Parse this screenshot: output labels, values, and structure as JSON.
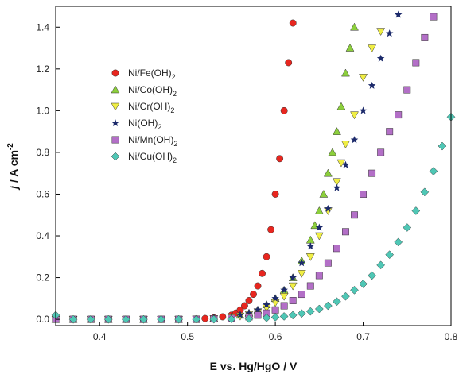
{
  "chart_data": {
    "type": "scatter",
    "title": "",
    "xlabel": "E vs. Hg/HgO / V",
    "ylabel": "j / A cm-2",
    "xlim": [
      0.35,
      0.8
    ],
    "ylim": [
      -0.03,
      1.5
    ],
    "x_ticks": [
      "0.4",
      "0.5",
      "0.6",
      "0.7",
      "0.8"
    ],
    "y_ticks": [
      "0.0",
      "0.2",
      "0.4",
      "0.6",
      "0.8",
      "1.0",
      "1.2",
      "1.4"
    ],
    "grid": false,
    "legend_position": "top-left",
    "series": [
      {
        "name": "Ni/Fe(OH)2",
        "legend_label": "Ni/Fe(OH)",
        "legend_sub": "2",
        "marker": "circle",
        "color": "#e8261f",
        "x": [
          0.35,
          0.37,
          0.39,
          0.41,
          0.43,
          0.45,
          0.47,
          0.49,
          0.51,
          0.52,
          0.53,
          0.54,
          0.55,
          0.555,
          0.56,
          0.565,
          0.57,
          0.575,
          0.58,
          0.585,
          0.59,
          0.595,
          0.6,
          0.605,
          0.61,
          0.615,
          0.62
        ],
        "y": [
          0,
          0,
          0,
          0,
          0,
          0,
          0,
          0,
          0.002,
          0.004,
          0.007,
          0.012,
          0.02,
          0.03,
          0.045,
          0.065,
          0.09,
          0.12,
          0.16,
          0.22,
          0.3,
          0.43,
          0.6,
          0.77,
          1.0,
          1.23,
          1.42
        ]
      },
      {
        "name": "Ni/Co(OH)2",
        "legend_label": "Ni/Co(OH)",
        "legend_sub": "2",
        "marker": "triangle-up",
        "color": "#8ccf3c",
        "x": [
          0.35,
          0.37,
          0.39,
          0.41,
          0.43,
          0.45,
          0.47,
          0.49,
          0.51,
          0.53,
          0.55,
          0.56,
          0.57,
          0.58,
          0.59,
          0.6,
          0.61,
          0.62,
          0.63,
          0.64,
          0.645,
          0.65,
          0.655,
          0.66,
          0.665,
          0.67,
          0.675,
          0.68,
          0.685,
          0.69
        ],
        "y": [
          0,
          0,
          0,
          0,
          0,
          0,
          0,
          0,
          0.002,
          0.005,
          0.012,
          0.02,
          0.03,
          0.045,
          0.07,
          0.1,
          0.14,
          0.2,
          0.28,
          0.38,
          0.45,
          0.52,
          0.6,
          0.7,
          0.8,
          0.9,
          1.02,
          1.18,
          1.3,
          1.4
        ]
      },
      {
        "name": "Ni/Cr(OH)2",
        "legend_label": "Ni/Cr(OH)",
        "legend_sub": "2",
        "marker": "triangle-down",
        "color": "#f0ee44",
        "x": [
          0.35,
          0.37,
          0.39,
          0.41,
          0.43,
          0.45,
          0.47,
          0.49,
          0.51,
          0.53,
          0.55,
          0.56,
          0.57,
          0.58,
          0.59,
          0.6,
          0.61,
          0.62,
          0.63,
          0.64,
          0.65,
          0.66,
          0.67,
          0.675,
          0.68,
          0.69,
          0.7,
          0.71,
          0.72
        ],
        "y": [
          0,
          0,
          0,
          0,
          0,
          0,
          0,
          0,
          0.001,
          0.003,
          0.009,
          0.015,
          0.024,
          0.036,
          0.055,
          0.08,
          0.11,
          0.16,
          0.22,
          0.3,
          0.4,
          0.52,
          0.66,
          0.75,
          0.84,
          0.98,
          1.16,
          1.3,
          1.38
        ]
      },
      {
        "name": "Ni(OH)2",
        "legend_label": "Ni(OH)",
        "legend_sub": "2",
        "marker": "star",
        "color": "#1c2a6b",
        "x": [
          0.35,
          0.37,
          0.39,
          0.41,
          0.43,
          0.45,
          0.47,
          0.49,
          0.51,
          0.53,
          0.55,
          0.56,
          0.57,
          0.58,
          0.59,
          0.6,
          0.61,
          0.62,
          0.63,
          0.64,
          0.65,
          0.66,
          0.67,
          0.68,
          0.69,
          0.7,
          0.71,
          0.72,
          0.73,
          0.74
        ],
        "y": [
          0,
          0,
          0,
          0,
          0,
          0,
          0,
          0,
          0.002,
          0.005,
          0.012,
          0.02,
          0.03,
          0.045,
          0.07,
          0.1,
          0.14,
          0.2,
          0.27,
          0.35,
          0.44,
          0.53,
          0.63,
          0.74,
          0.86,
          1.0,
          1.12,
          1.25,
          1.37,
          1.46
        ]
      },
      {
        "name": "Ni/Mn(OH)2",
        "legend_label": "Ni/Mn(OH)",
        "legend_sub": "2",
        "marker": "square",
        "color": "#b36fc7",
        "x": [
          0.35,
          0.37,
          0.39,
          0.41,
          0.43,
          0.45,
          0.47,
          0.49,
          0.51,
          0.53,
          0.55,
          0.57,
          0.58,
          0.59,
          0.6,
          0.61,
          0.62,
          0.63,
          0.64,
          0.65,
          0.66,
          0.67,
          0.68,
          0.69,
          0.7,
          0.71,
          0.72,
          0.73,
          0.74,
          0.75,
          0.76,
          0.77,
          0.78
        ],
        "y": [
          0,
          0,
          0,
          0,
          0,
          0,
          0,
          0,
          0,
          0.002,
          0.005,
          0.012,
          0.02,
          0.03,
          0.045,
          0.065,
          0.09,
          0.12,
          0.16,
          0.21,
          0.27,
          0.34,
          0.42,
          0.5,
          0.6,
          0.7,
          0.8,
          0.9,
          0.98,
          1.1,
          1.23,
          1.35,
          1.45
        ]
      },
      {
        "name": "Ni/Cu(OH)2",
        "legend_label": "Ni/Cu(OH)",
        "legend_sub": "2",
        "marker": "diamond",
        "color": "#4fc7b5",
        "x": [
          0.35,
          0.37,
          0.39,
          0.41,
          0.43,
          0.45,
          0.47,
          0.49,
          0.51,
          0.53,
          0.55,
          0.57,
          0.59,
          0.6,
          0.61,
          0.62,
          0.63,
          0.64,
          0.65,
          0.66,
          0.67,
          0.68,
          0.69,
          0.7,
          0.71,
          0.72,
          0.73,
          0.74,
          0.75,
          0.76,
          0.77,
          0.78,
          0.79,
          0.8
        ],
        "y": [
          0.02,
          0,
          0,
          0,
          0,
          0,
          0,
          0,
          0,
          0,
          0.001,
          0.003,
          0.007,
          0.01,
          0.014,
          0.02,
          0.028,
          0.038,
          0.05,
          0.065,
          0.085,
          0.11,
          0.14,
          0.17,
          0.21,
          0.26,
          0.31,
          0.37,
          0.44,
          0.52,
          0.61,
          0.71,
          0.83,
          0.97
        ]
      }
    ]
  }
}
